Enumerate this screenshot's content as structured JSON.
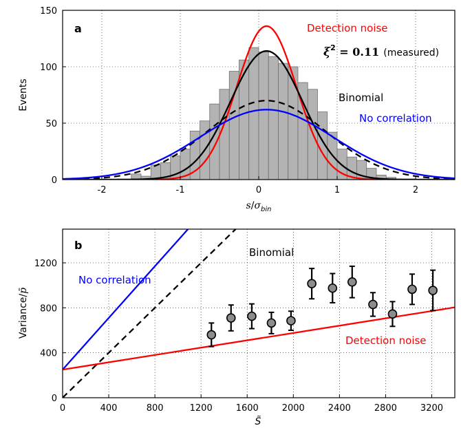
{
  "chart_data": [
    {
      "type": "bar",
      "panel_label": "a",
      "xlabel_main": "s",
      "xlabel_denom_main": "σ",
      "xlabel_denom_sub": "bin",
      "ylabel": "Events",
      "xlim": [
        -2.5,
        2.5
      ],
      "ylim": [
        0,
        150
      ],
      "xticks": [
        "-2",
        "-1",
        "0",
        "1",
        "2"
      ],
      "yticks": [
        "0",
        "50",
        "100",
        "150"
      ],
      "bin_width": 0.125,
      "histogram": {
        "bin_centers": [
          -1.5625,
          -1.4375,
          -1.3125,
          -1.1875,
          -1.0625,
          -0.9375,
          -0.8125,
          -0.6875,
          -0.5625,
          -0.4375,
          -0.3125,
          -0.1875,
          -0.0625,
          0.0625,
          0.1875,
          0.3125,
          0.4375,
          0.5625,
          0.6875,
          0.8125,
          0.9375,
          1.0625,
          1.1875,
          1.3125,
          1.4375,
          1.5625,
          1.6875
        ],
        "counts": [
          5,
          3,
          13,
          15,
          21,
          27,
          43,
          52,
          67,
          80,
          96,
          106,
          117,
          113,
          109,
          103,
          100,
          86,
          80,
          60,
          42,
          27,
          20,
          17,
          10,
          4,
          2
        ]
      },
      "curves": [
        {
          "name": "Detection noise",
          "color": "#ff0000",
          "style": "solid",
          "amplitude": 136,
          "mean": 0.1,
          "sigma": 0.38
        },
        {
          "name": "Binomial",
          "color": "#000000",
          "style": "solid",
          "amplitude": 114,
          "mean": 0.1,
          "sigma": 0.46
        },
        {
          "name": "",
          "color": "#000000",
          "style": "dashed",
          "amplitude": 70,
          "mean": 0.1,
          "sigma": 0.76
        },
        {
          "name": "No correlation",
          "color": "#0000ff",
          "style": "solid",
          "amplitude": 62,
          "mean": 0.1,
          "sigma": 0.85
        }
      ],
      "annotations": {
        "detection_noise": "Detection noise",
        "binomial": "Binomial",
        "no_correlation": "No correlation",
        "xi_label": "ξ",
        "xi_exp": "2",
        "xi_value": " = 0.11",
        "xi_note": "(measured)"
      }
    },
    {
      "type": "scatter",
      "panel_label": "b",
      "xlabel": "S̃",
      "ylabel_main": "Variance/",
      "ylabel_pbar": "p̄",
      "xlim": [
        0,
        3400
      ],
      "ylim": [
        0,
        1500
      ],
      "xticks": [
        0,
        400,
        800,
        1200,
        1600,
        2000,
        2400,
        2800,
        3200
      ],
      "yticks": [
        0,
        400,
        800,
        1200
      ],
      "points": {
        "x": [
          1290,
          1460,
          1640,
          1810,
          1980,
          2160,
          2340,
          2510,
          2690,
          2860,
          3030,
          3210
        ],
        "y": [
          560,
          710,
          725,
          665,
          685,
          1015,
          975,
          1030,
          830,
          745,
          965,
          955
        ],
        "err": [
          105,
          115,
          110,
          95,
          85,
          135,
          130,
          140,
          105,
          110,
          135,
          180
        ]
      },
      "lines": [
        {
          "name": "No correlation",
          "color": "#0000ff",
          "style": "solid",
          "x0": 0,
          "y0": 250,
          "slope": 1.15
        },
        {
          "name": "Binomial",
          "color": "#000000",
          "style": "dashed",
          "x0": 0,
          "y0": 0,
          "slope": 1.0
        },
        {
          "name": "Detection noise",
          "color": "#ff0000",
          "style": "solid",
          "x0": 0,
          "y0": 250,
          "slope": 0.163
        }
      ],
      "annotations": {
        "no_correlation": "No correlation",
        "binomial": "Binomial",
        "detection_noise": "Detection noise"
      }
    }
  ]
}
